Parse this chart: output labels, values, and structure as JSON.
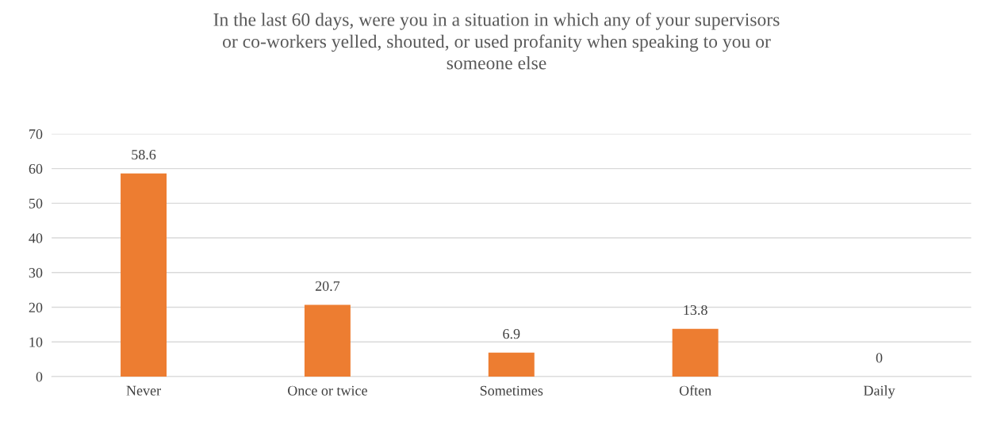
{
  "chart_data": {
    "type": "bar",
    "title": "In the last 60 days, were you in a situation in which any of your supervisors\nor co-workers yelled, shouted, or used profanity when speaking to you or\nsomeone else",
    "categories": [
      "Never",
      "Once or twice",
      "Sometimes",
      "Often",
      "Daily"
    ],
    "values": [
      58.6,
      20.7,
      6.9,
      13.8,
      0
    ],
    "color": "#ed7d31",
    "ylim": [
      0,
      70
    ],
    "yticks": [
      0,
      10,
      20,
      30,
      40,
      50,
      60,
      70
    ],
    "grid": "y",
    "data_labels": true,
    "legend": false
  }
}
